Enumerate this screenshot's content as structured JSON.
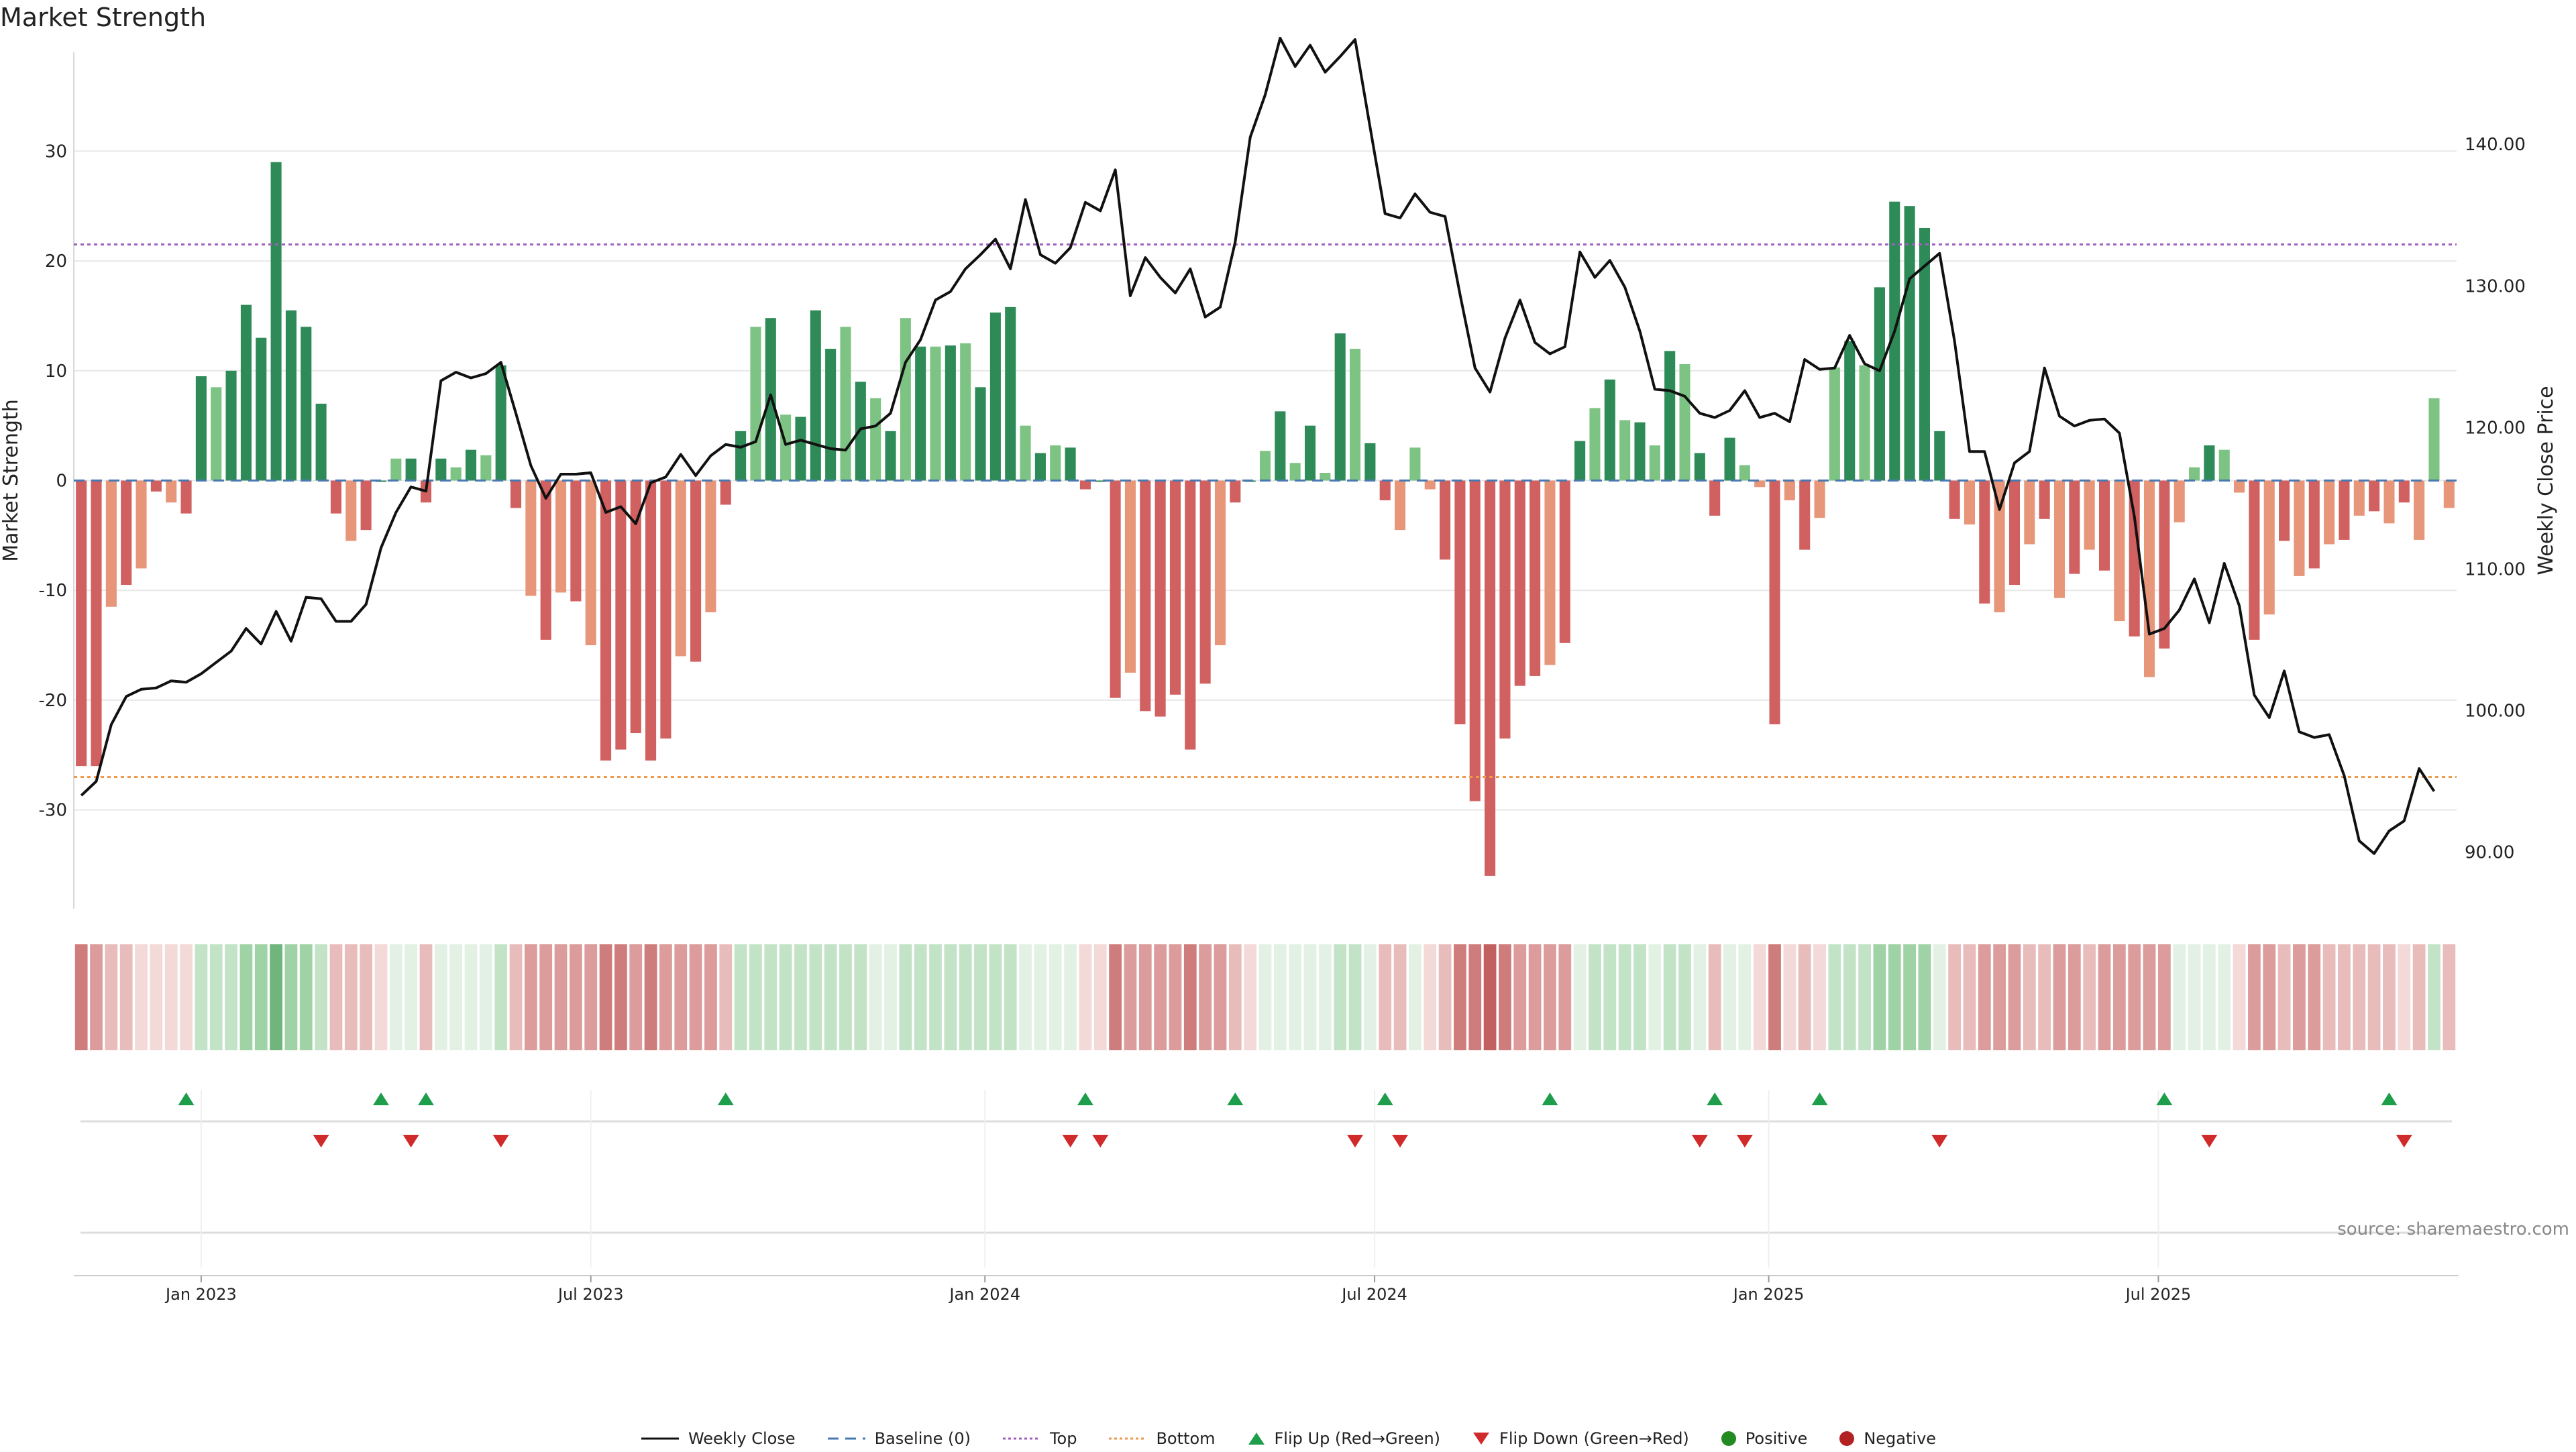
{
  "page": {
    "title": "Market Strength",
    "source": "source: sharemaestro.com"
  },
  "legend": [
    {
      "key": "weekly_close",
      "label": "Weekly Close"
    },
    {
      "key": "baseline",
      "label": "Baseline (0)"
    },
    {
      "key": "top",
      "label": "Top"
    },
    {
      "key": "bottom",
      "label": "Bottom"
    },
    {
      "key": "flip_up",
      "label": "Flip Up (Red→Green)"
    },
    {
      "key": "flip_down",
      "label": "Flip Down (Green→Red)"
    },
    {
      "key": "positive",
      "label": "Positive"
    },
    {
      "key": "negative",
      "label": "Negative"
    }
  ],
  "colors": {
    "pos_strong": "#2e8b57",
    "pos_light": "#7dc383",
    "neg_strong": "#d16060",
    "neg_light": "#e8967a",
    "price_line": "#111111",
    "baseline": "#4a78b0",
    "top_line": "#a05fbf",
    "bottom_line": "#ee9a4d",
    "flip_up": "#1e9e4a",
    "flip_down": "#d02a2a",
    "positive_dot": "#228b22",
    "negative_dot": "#b22222",
    "grid": "#e8e8e8",
    "axis_text": "#222222"
  },
  "chart_data": {
    "type": "bar+line",
    "title": "Market Strength",
    "ylabel": "Market Strength",
    "y2label": "Weekly Close Price",
    "ylim": [
      -39,
      39
    ],
    "y2lim": [
      86,
      146.5
    ],
    "yticks": [
      -30,
      -20,
      -10,
      0,
      10,
      20,
      30
    ],
    "y2ticks": [
      {
        "value": 90,
        "label": "90.00"
      },
      {
        "value": 100,
        "label": "100.00"
      },
      {
        "value": 110,
        "label": "110.00"
      },
      {
        "value": 120,
        "label": "120.00"
      },
      {
        "value": 130,
        "label": "130.00"
      },
      {
        "value": 140,
        "label": "140.00"
      }
    ],
    "top_level": 21.5,
    "bottom_level": -27,
    "x_ticks": [
      {
        "label": "Jan 2023",
        "week": 9
      },
      {
        "label": "Jul 2023",
        "week": 35
      },
      {
        "label": "Jan 2024",
        "week": 61.3
      },
      {
        "label": "Jul 2024",
        "week": 87.3
      },
      {
        "label": "Jan 2025",
        "week": 113.6
      },
      {
        "label": "Jul 2025",
        "week": 139.6
      }
    ],
    "strength": [
      -26,
      -26,
      -11.5,
      -9.5,
      -8,
      -1,
      -2,
      -3,
      9.5,
      8.5,
      10,
      16,
      13,
      29,
      15.5,
      14,
      7,
      -3,
      -5.5,
      -4.5,
      0,
      2,
      2,
      -2,
      2,
      1.2,
      2.8,
      2.3,
      10.5,
      -2.5,
      -10.5,
      -14.5,
      -10.2,
      -11,
      -15,
      -25.5,
      -24.5,
      -23,
      -25.5,
      -23.5,
      -16,
      -16.5,
      -12,
      -2.2,
      4.5,
      14,
      14.8,
      6,
      5.8,
      15.5,
      12,
      14,
      9,
      7.5,
      4.5,
      14.8,
      12.2,
      12.2,
      12.3,
      12.5,
      8.5,
      15.3,
      15.8,
      5,
      2.5,
      3.2,
      3,
      -0.8,
      0,
      -19.8,
      -17.5,
      -21,
      -21.5,
      -19.5,
      -24.5,
      -18.5,
      -15,
      -2,
      0,
      2.7,
      6.3,
      1.6,
      5,
      0.7,
      13.4,
      12,
      3.4,
      -1.8,
      -4.5,
      3,
      -0.8,
      -7.2,
      -22.2,
      -29.2,
      -36,
      -23.5,
      -18.7,
      -17.8,
      -16.8,
      -14.8,
      3.6,
      6.6,
      9.2,
      5.5,
      5.3,
      3.2,
      11.8,
      10.6,
      2.5,
      -3.2,
      3.9,
      1.4,
      -0.6,
      -22.2,
      -1.8,
      -6.3,
      -3.4,
      10.3,
      12.7,
      10.5,
      17.6,
      25.4,
      25,
      23,
      4.5,
      -3.5,
      -4,
      -11.2,
      -12,
      -9.5,
      -5.8,
      -3.5,
      -10.7,
      -8.5,
      -6.3,
      -8.2,
      -12.8,
      -14.2,
      -17.9,
      -15.3,
      -3.8,
      1.2,
      3.2,
      2.8,
      -1.1,
      -14.5,
      -12.2,
      -5.5,
      -8.7,
      -8,
      -5.8,
      -5.4,
      -3.2,
      -2.8,
      -3.9,
      -2,
      -5.4,
      7.5,
      -2.5
    ],
    "close_price": [
      94,
      95,
      99,
      101,
      101.5,
      101.6,
      102.1,
      102,
      102.6,
      103.4,
      104.2,
      105.8,
      104.7,
      107,
      104.9,
      108,
      107.9,
      106.3,
      106.3,
      107.5,
      111.5,
      114,
      115.8,
      115.5,
      123.3,
      123.9,
      123.5,
      123.8,
      124.6,
      121,
      117.3,
      115,
      116.7,
      116.7,
      116.8,
      114,
      114.4,
      113.2,
      116.1,
      116.5,
      118.1,
      116.6,
      118,
      118.8,
      118.6,
      119,
      122.3,
      118.8,
      119.1,
      118.8,
      118.5,
      118.4,
      119.9,
      120.1,
      121,
      124.6,
      126.2,
      129,
      129.6,
      131.2,
      132.2,
      133.3,
      131.2,
      136.1,
      132.2,
      131.6,
      132.7,
      135.9,
      135.3,
      138.2,
      129.3,
      132,
      130.6,
      129.5,
      131.2,
      127.8,
      128.5,
      133.1,
      140.5,
      143.5,
      147.5,
      145.5,
      147,
      145.1,
      146.2,
      147.4,
      141.2,
      135.1,
      134.8,
      136.5,
      135.2,
      134.9,
      129.4,
      124.2,
      122.5,
      126.3,
      129,
      126,
      125.2,
      125.7,
      132.4,
      130.6,
      131.8,
      129.9,
      126.8,
      122.7,
      122.6,
      122.2,
      121,
      120.7,
      121.2,
      122.6,
      120.7,
      121,
      120.4,
      124.8,
      124.1,
      124.2,
      126.5,
      124.5,
      124,
      126.8,
      130.5,
      131.4,
      132.3,
      126.1,
      118.3,
      118.3,
      114.2,
      117.5,
      118.3,
      124.2,
      120.8,
      120.1,
      120.5,
      120.6,
      119.6,
      113.7,
      105.4,
      105.8,
      107.1,
      109.3,
      106.2,
      110.4,
      107.4,
      101.1,
      99.5,
      102.8,
      98.5,
      98.1,
      98.3,
      95.4,
      90.8,
      89.9,
      91.5,
      92.2,
      95.9,
      94.3
    ],
    "strip_shades": [
      4,
      3,
      2,
      2,
      1,
      1,
      1,
      1,
      -2,
      -2,
      -2,
      -3,
      -3,
      -4,
      -3,
      -3,
      -2,
      2,
      2,
      2,
      1,
      -1,
      -1,
      2,
      -1,
      -1,
      -1,
      -1,
      -2,
      2,
      3,
      3,
      3,
      3,
      3,
      4,
      4,
      3,
      4,
      3,
      3,
      3,
      3,
      2,
      -2,
      -2,
      -2,
      -2,
      -2,
      -2,
      -2,
      -2,
      -2,
      -1,
      -1,
      -2,
      -2,
      -2,
      -2,
      -2,
      -2,
      -2,
      -2,
      -1,
      -1,
      -1,
      -1,
      1,
      1,
      4,
      3,
      3,
      3,
      3,
      4,
      3,
      3,
      2,
      1,
      -1,
      -1,
      -1,
      -1,
      -1,
      -2,
      -2,
      -1,
      2,
      2,
      -1,
      1,
      2,
      4,
      4,
      5,
      4,
      3,
      3,
      3,
      3,
      -1,
      -2,
      -2,
      -2,
      -2,
      -1,
      -2,
      -2,
      -1,
      2,
      -1,
      -1,
      1,
      4,
      1,
      2,
      1,
      -2,
      -2,
      -2,
      -3,
      -3,
      -3,
      -3,
      -1,
      2,
      2,
      3,
      3,
      3,
      2,
      2,
      3,
      3,
      2,
      3,
      3,
      3,
      3,
      3,
      -1,
      -1,
      -1,
      -1,
      1,
      3,
      3,
      2,
      3,
      3,
      2,
      2,
      2,
      2,
      2,
      1,
      2,
      -2,
      2
    ],
    "flip_up_weeks": [
      8,
      21,
      24,
      44,
      68,
      78,
      88,
      99,
      110,
      117,
      140,
      155
    ],
    "flip_down_weeks": [
      17,
      23,
      29,
      67,
      69,
      86,
      89,
      109,
      112,
      125,
      143,
      156
    ]
  }
}
